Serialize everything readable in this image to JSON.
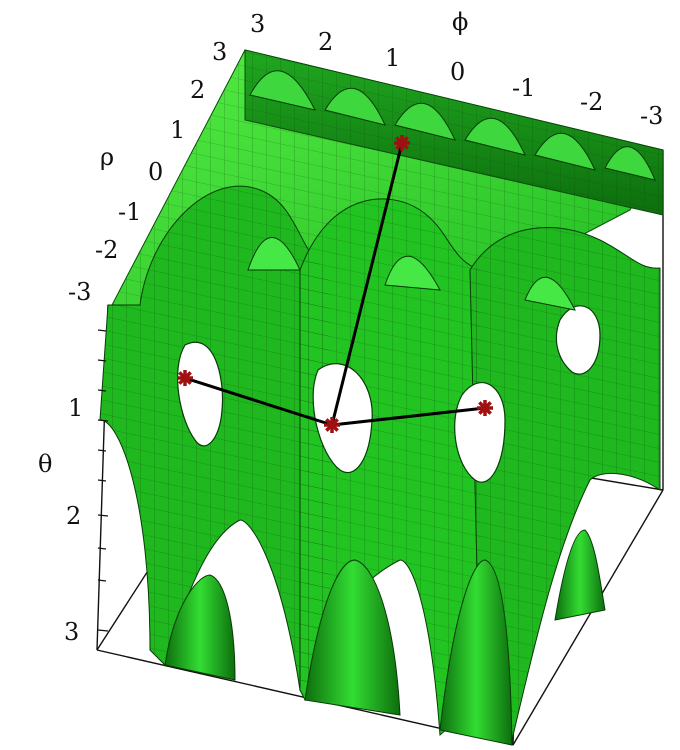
{
  "figure": {
    "type": "3d-isosurface",
    "axes": {
      "phi": {
        "name": "ϕ",
        "ticks": [
          "3",
          "2",
          "1",
          "0",
          "-1",
          "-2",
          "-3"
        ]
      },
      "rho": {
        "name": "ρ",
        "ticks": [
          "3",
          "2",
          "1",
          "0",
          "-1",
          "-2",
          "-3"
        ]
      },
      "theta": {
        "name": "θ",
        "ticks": [
          "1",
          "2",
          "3"
        ]
      }
    },
    "surface_color": "#22cc22",
    "surface_dark": "#0a7a0a",
    "surface_light": "#66ff55",
    "marker_color": "#a01010",
    "markers": [
      {
        "name": "marker-top"
      },
      {
        "name": "marker-left"
      },
      {
        "name": "marker-center"
      },
      {
        "name": "marker-right"
      }
    ]
  }
}
